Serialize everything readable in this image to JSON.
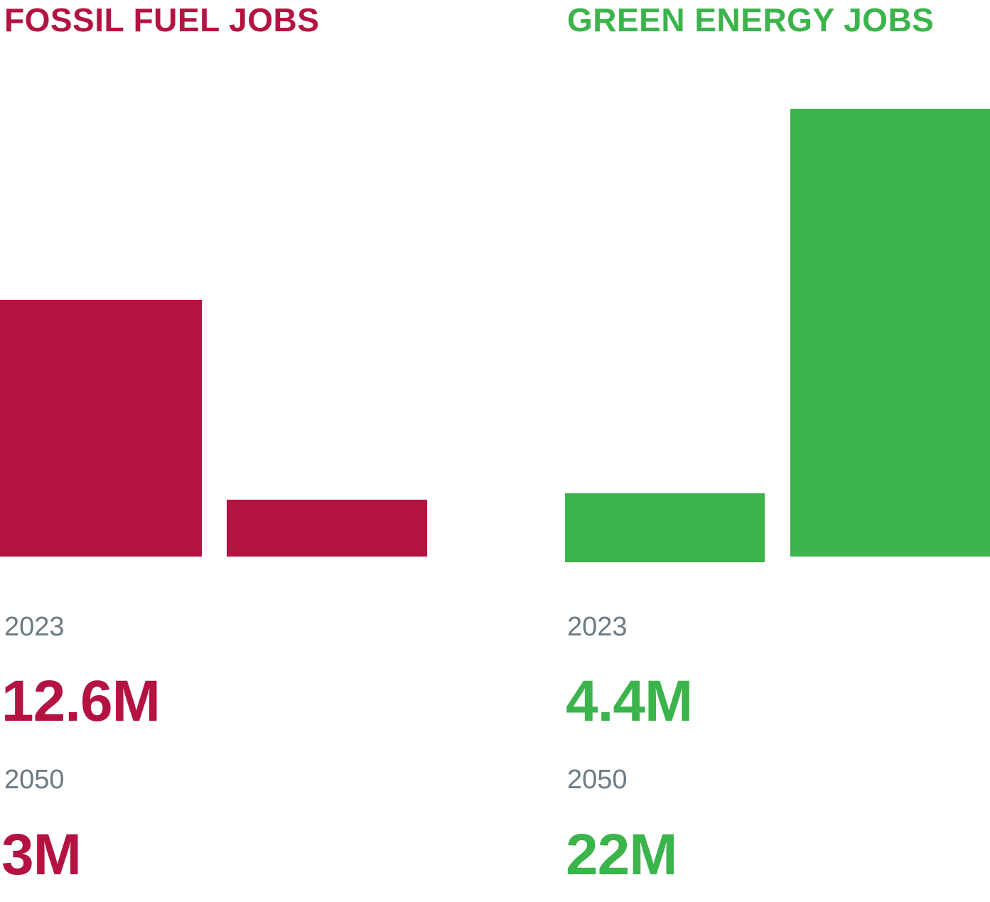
{
  "colors": {
    "fossil": "#b41342",
    "green": "#3bb44b",
    "year_text": "#6c7a84"
  },
  "chart_data": [
    {
      "type": "bar",
      "title": "FOSSIL FUEL JOBS",
      "categories": [
        "2023",
        "2050"
      ],
      "values": [
        12.6,
        3
      ],
      "value_labels": [
        "12.6M",
        "3M"
      ],
      "ylim": [
        0,
        22
      ],
      "grid": false,
      "legend": "none",
      "color": "#b41342"
    },
    {
      "type": "bar",
      "title": "GREEN ENERGY JOBS",
      "categories": [
        "2023",
        "2050"
      ],
      "values": [
        4.4,
        22
      ],
      "value_labels": [
        "4.4M",
        "22M"
      ],
      "ylim": [
        0,
        22
      ],
      "grid": false,
      "legend": "none",
      "color": "#3bb44b"
    }
  ]
}
